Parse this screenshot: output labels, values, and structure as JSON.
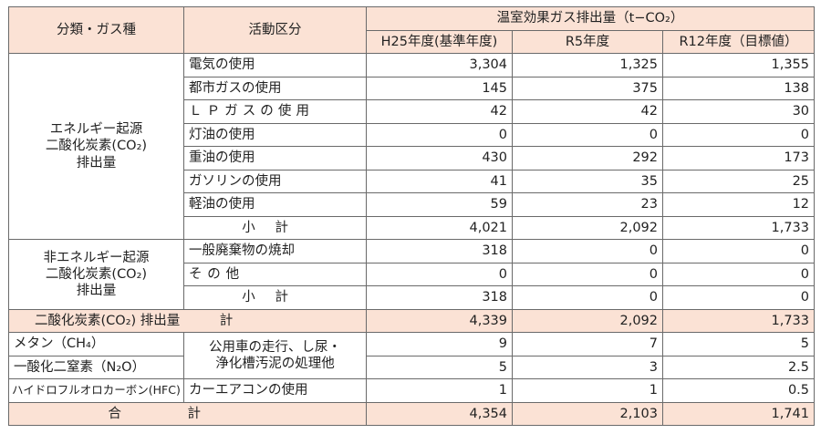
{
  "header": {
    "category": "分類・ガス種",
    "activity": "活動区分",
    "emission": "温室効果ガス排出量（t−CO₂）",
    "years": [
      "H25年度(基準年度)",
      "R5年度",
      "R12年度（目標値）"
    ]
  },
  "energy": {
    "group_lines": [
      "エネルギー起源",
      "二酸化炭素(CO₂)",
      "排出量"
    ],
    "rows": [
      {
        "label": "電気の使用",
        "values": [
          "3,304",
          "1,325",
          "1,355"
        ]
      },
      {
        "label": "都市ガスの使用",
        "values": [
          "145",
          "375",
          "138"
        ]
      },
      {
        "label": "ＬＰガスの使用",
        "values": [
          "42",
          "42",
          "30"
        ]
      },
      {
        "label": "灯油の使用",
        "values": [
          "0",
          "0",
          "0"
        ]
      },
      {
        "label": "重油の使用",
        "values": [
          "430",
          "292",
          "173"
        ]
      },
      {
        "label": "ガソリンの使用",
        "values": [
          "41",
          "35",
          "25"
        ]
      },
      {
        "label": "軽油の使用",
        "values": [
          "59",
          "23",
          "12"
        ]
      }
    ],
    "subtotal": {
      "label": "小計",
      "values": [
        "4,021",
        "2,092",
        "1,733"
      ]
    }
  },
  "non_energy": {
    "group_lines": [
      "非エネルギー起源",
      "二酸化炭素(CO₂)",
      "排出量"
    ],
    "rows": [
      {
        "label": "一般廃棄物の焼却",
        "values": [
          "318",
          "0",
          "0"
        ]
      },
      {
        "label": "その他",
        "values": [
          "0",
          "0",
          "0"
        ]
      }
    ],
    "subtotal": {
      "label": "小計",
      "values": [
        "318",
        "0",
        "0"
      ]
    }
  },
  "co2_total": {
    "label": "二酸化炭素(CO₂) 排出量　　　計",
    "values": [
      "4,339",
      "2,092",
      "1,733"
    ]
  },
  "other_gases": [
    {
      "gas": "メタン（CH₄）",
      "values": [
        "9",
        "7",
        "5"
      ]
    },
    {
      "gas": "一酸化二窒素（N₂O）",
      "values": [
        "5",
        "3",
        "2.5"
      ]
    },
    {
      "gas": "ハイドロフルオロカーボン(HFC)",
      "activity": "カーエアコンの使用",
      "values": [
        "1",
        "1",
        "0.5"
      ]
    }
  ],
  "shared_activity": [
    "公用車の走行、し尿・",
    "浄化槽汚泥の処理他"
  ],
  "grand_total": {
    "label": "合計",
    "values": [
      "4,354",
      "2,103",
      "1,741"
    ]
  }
}
